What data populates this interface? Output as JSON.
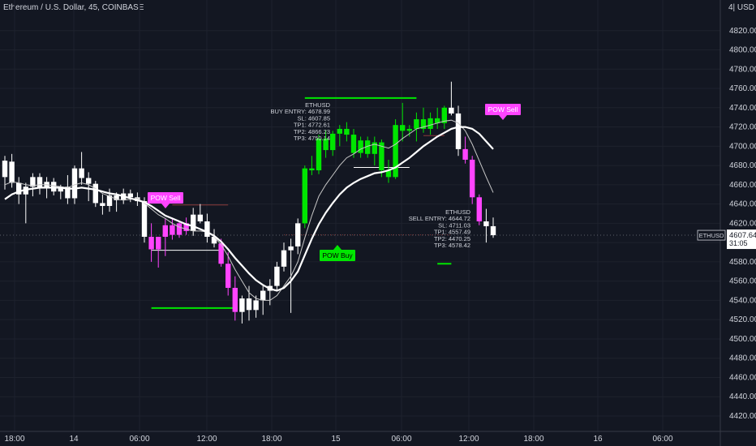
{
  "header": {
    "title": "Ethereum / U.S. Dollar, 45, COINBASE",
    "currency": "4| USD"
  },
  "colors": {
    "background": "#131722",
    "bull": "#00e600",
    "bear": "#ff44ff",
    "neutral": "#ffffff",
    "grid": "#1e222d",
    "price_line": "#8b3a3a"
  },
  "price_axis": {
    "ticks": [
      "4820.00",
      "4800.00",
      "4780.00",
      "4760.00",
      "4740.00",
      "4720.00",
      "4700.00",
      "4680.00",
      "4660.00",
      "4640.00",
      "4620.00",
      "4580.00",
      "4560.00",
      "4540.00",
      "4520.00",
      "4500.00",
      "4480.00",
      "4460.00",
      "4440.00",
      "4420.00"
    ],
    "last_price_symbol": "ETHUSD",
    "last_price": "4607.64",
    "countdown": "31:05"
  },
  "time_axis": {
    "ticks": [
      "18:00",
      "14",
      "06:00",
      "12:00",
      "18:00",
      "15",
      "06:00",
      "12:00",
      "18:00",
      "16",
      "06:00"
    ]
  },
  "annotations": {
    "sell_label_1": "POW Sell",
    "sell_label_2": "POW Sell",
    "buy_label": "POW Buy",
    "buy_box": [
      "ETHUSD",
      "BUY ENTRY: 4678.99",
      "SL: 4607.85",
      "TP1: 4772.61",
      "TP2: 4866.23",
      "TP3: 4750.14"
    ],
    "sell_box": [
      "ETHUSD",
      "SELL ENTRY: 4644.72",
      "SL: 4711.03",
      "TP1: 4557.49",
      "TP2: 4470.25",
      "TP3: 4578.42"
    ]
  },
  "chart_data": {
    "type": "candlestick",
    "title": "Ethereum / U.S. Dollar, 45, COINBASE",
    "ylim": [
      4400,
      4830
    ],
    "last_price": 4607.64,
    "candles": [
      {
        "o": 4668,
        "h": 4690,
        "l": 4655,
        "c": 4685,
        "col": "w"
      },
      {
        "o": 4684,
        "h": 4692,
        "l": 4657,
        "c": 4662,
        "col": "w"
      },
      {
        "o": 4662,
        "h": 4668,
        "l": 4640,
        "c": 4650,
        "col": "w"
      },
      {
        "o": 4650,
        "h": 4662,
        "l": 4620,
        "c": 4658,
        "col": "w"
      },
      {
        "o": 4658,
        "h": 4672,
        "l": 4648,
        "c": 4668,
        "col": "w"
      },
      {
        "o": 4668,
        "h": 4672,
        "l": 4650,
        "c": 4657,
        "col": "w"
      },
      {
        "o": 4657,
        "h": 4668,
        "l": 4646,
        "c": 4663,
        "col": "w"
      },
      {
        "o": 4663,
        "h": 4667,
        "l": 4649,
        "c": 4653,
        "col": "w"
      },
      {
        "o": 4653,
        "h": 4660,
        "l": 4645,
        "c": 4658,
        "col": "w"
      },
      {
        "o": 4658,
        "h": 4670,
        "l": 4640,
        "c": 4646,
        "col": "w"
      },
      {
        "o": 4646,
        "h": 4680,
        "l": 4640,
        "c": 4677,
        "col": "w"
      },
      {
        "o": 4677,
        "h": 4694,
        "l": 4660,
        "c": 4667,
        "col": "w"
      },
      {
        "o": 4667,
        "h": 4673,
        "l": 4643,
        "c": 4661,
        "col": "w"
      },
      {
        "o": 4661,
        "h": 4664,
        "l": 4637,
        "c": 4641,
        "col": "w"
      },
      {
        "o": 4641,
        "h": 4650,
        "l": 4629,
        "c": 4638,
        "col": "w"
      },
      {
        "o": 4638,
        "h": 4656,
        "l": 4632,
        "c": 4649,
        "col": "w"
      },
      {
        "o": 4649,
        "h": 4652,
        "l": 4632,
        "c": 4644,
        "col": "w"
      },
      {
        "o": 4644,
        "h": 4656,
        "l": 4640,
        "c": 4651,
        "col": "w"
      },
      {
        "o": 4651,
        "h": 4655,
        "l": 4642,
        "c": 4647,
        "col": "w"
      },
      {
        "o": 4647,
        "h": 4652,
        "l": 4638,
        "c": 4643,
        "col": "w"
      },
      {
        "o": 4643,
        "h": 4647,
        "l": 4600,
        "c": 4606,
        "col": "w"
      },
      {
        "o": 4606,
        "h": 4620,
        "l": 4580,
        "c": 4593,
        "col": "p"
      },
      {
        "o": 4593,
        "h": 4605,
        "l": 4574,
        "c": 4606,
        "col": "p"
      },
      {
        "o": 4606,
        "h": 4625,
        "l": 4586,
        "c": 4618,
        "col": "p"
      },
      {
        "o": 4618,
        "h": 4625,
        "l": 4603,
        "c": 4608,
        "col": "p"
      },
      {
        "o": 4608,
        "h": 4622,
        "l": 4605,
        "c": 4620,
        "col": "p"
      },
      {
        "o": 4620,
        "h": 4626,
        "l": 4608,
        "c": 4612,
        "col": "p"
      },
      {
        "o": 4612,
        "h": 4636,
        "l": 4607,
        "c": 4629,
        "col": "w"
      },
      {
        "o": 4629,
        "h": 4640,
        "l": 4620,
        "c": 4622,
        "col": "w"
      },
      {
        "o": 4622,
        "h": 4630,
        "l": 4600,
        "c": 4606,
        "col": "w"
      },
      {
        "o": 4606,
        "h": 4614,
        "l": 4595,
        "c": 4599,
        "col": "w"
      },
      {
        "o": 4599,
        "h": 4604,
        "l": 4575,
        "c": 4578,
        "col": "p"
      },
      {
        "o": 4578,
        "h": 4590,
        "l": 4545,
        "c": 4553,
        "col": "p"
      },
      {
        "o": 4553,
        "h": 4565,
        "l": 4519,
        "c": 4528,
        "col": "p"
      },
      {
        "o": 4528,
        "h": 4545,
        "l": 4516,
        "c": 4542,
        "col": "w"
      },
      {
        "o": 4542,
        "h": 4555,
        "l": 4519,
        "c": 4530,
        "col": "w"
      },
      {
        "o": 4530,
        "h": 4545,
        "l": 4522,
        "c": 4540,
        "col": "w"
      },
      {
        "o": 4540,
        "h": 4555,
        "l": 4525,
        "c": 4550,
        "col": "w"
      },
      {
        "o": 4550,
        "h": 4562,
        "l": 4535,
        "c": 4555,
        "col": "w"
      },
      {
        "o": 4555,
        "h": 4580,
        "l": 4550,
        "c": 4575,
        "col": "w"
      },
      {
        "o": 4575,
        "h": 4600,
        "l": 4570,
        "c": 4592,
        "col": "w"
      },
      {
        "o": 4592,
        "h": 4604,
        "l": 4527,
        "c": 4596,
        "col": "w"
      },
      {
        "o": 4596,
        "h": 4625,
        "l": 4588,
        "c": 4620,
        "col": "w"
      },
      {
        "o": 4620,
        "h": 4680,
        "l": 4615,
        "c": 4677,
        "col": "g"
      },
      {
        "o": 4677,
        "h": 4690,
        "l": 4670,
        "c": 4675,
        "col": "g"
      },
      {
        "o": 4675,
        "h": 4712,
        "l": 4671,
        "c": 4708,
        "col": "g"
      },
      {
        "o": 4708,
        "h": 4717,
        "l": 4688,
        "c": 4696,
        "col": "g"
      },
      {
        "o": 4696,
        "h": 4716,
        "l": 4690,
        "c": 4713,
        "col": "g"
      },
      {
        "o": 4713,
        "h": 4722,
        "l": 4700,
        "c": 4718,
        "col": "g"
      },
      {
        "o": 4718,
        "h": 4725,
        "l": 4705,
        "c": 4712,
        "col": "g"
      },
      {
        "o": 4712,
        "h": 4718,
        "l": 4688,
        "c": 4693,
        "col": "g"
      },
      {
        "o": 4693,
        "h": 4710,
        "l": 4688,
        "c": 4706,
        "col": "g"
      },
      {
        "o": 4706,
        "h": 4710,
        "l": 4688,
        "c": 4692,
        "col": "g"
      },
      {
        "o": 4692,
        "h": 4710,
        "l": 4680,
        "c": 4704,
        "col": "g"
      },
      {
        "o": 4704,
        "h": 4707,
        "l": 4668,
        "c": 4675,
        "col": "g"
      },
      {
        "o": 4675,
        "h": 4686,
        "l": 4662,
        "c": 4668,
        "col": "g"
      },
      {
        "o": 4668,
        "h": 4728,
        "l": 4666,
        "c": 4722,
        "col": "g"
      },
      {
        "o": 4722,
        "h": 4745,
        "l": 4705,
        "c": 4716,
        "col": "g"
      },
      {
        "o": 4716,
        "h": 4722,
        "l": 4710,
        "c": 4718,
        "col": "g"
      },
      {
        "o": 4718,
        "h": 4735,
        "l": 4705,
        "c": 4728,
        "col": "g"
      },
      {
        "o": 4728,
        "h": 4740,
        "l": 4714,
        "c": 4718,
        "col": "g"
      },
      {
        "o": 4718,
        "h": 4735,
        "l": 4712,
        "c": 4729,
        "col": "g"
      },
      {
        "o": 4729,
        "h": 4740,
        "l": 4718,
        "c": 4724,
        "col": "g"
      },
      {
        "o": 4724,
        "h": 4742,
        "l": 4718,
        "c": 4740,
        "col": "g"
      },
      {
        "o": 4740,
        "h": 4767,
        "l": 4732,
        "c": 4734,
        "col": "w"
      },
      {
        "o": 4734,
        "h": 4742,
        "l": 4690,
        "c": 4697,
        "col": "w"
      },
      {
        "o": 4697,
        "h": 4710,
        "l": 4682,
        "c": 4686,
        "col": "p"
      },
      {
        "o": 4686,
        "h": 4690,
        "l": 4640,
        "c": 4647,
        "col": "p"
      },
      {
        "o": 4647,
        "h": 4650,
        "l": 4618,
        "c": 4622,
        "col": "p"
      },
      {
        "o": 4622,
        "h": 4635,
        "l": 4600,
        "c": 4617,
        "col": "w"
      },
      {
        "o": 4617,
        "h": 4626,
        "l": 4605,
        "c": 4607.64,
        "col": "w"
      }
    ],
    "lines": {
      "ema_thick": [
        4645,
        4650,
        4653,
        4655,
        4656,
        4657,
        4657,
        4657,
        4657,
        4656,
        4656,
        4657,
        4656,
        4655,
        4653,
        4651,
        4650,
        4648,
        4646,
        4644,
        4642,
        4638,
        4633,
        4628,
        4625,
        4622,
        4619,
        4617,
        4614,
        4611,
        4607,
        4601,
        4593,
        4584,
        4576,
        4568,
        4561,
        4556,
        4552,
        4550,
        4553,
        4560,
        4570,
        4587,
        4604,
        4619,
        4631,
        4641,
        4650,
        4657,
        4662,
        4666,
        4669,
        4672,
        4673,
        4675,
        4678,
        4683,
        4688,
        4694,
        4700,
        4705,
        4710,
        4714,
        4718,
        4720,
        4720,
        4718,
        4713,
        4705,
        4697
      ],
      "sma_thin": [
        4660,
        4663,
        4662,
        4660,
        4659,
        4660,
        4660,
        4659,
        4658,
        4657,
        4660,
        4662,
        4660,
        4656,
        4651,
        4648,
        4645,
        4644,
        4645,
        4646,
        4641,
        4635,
        4629,
        4625,
        4620,
        4616,
        4614,
        4612,
        4612,
        4611,
        4606,
        4598,
        4586,
        4572,
        4560,
        4548,
        4542,
        4540,
        4540,
        4545,
        4555,
        4565,
        4580,
        4605,
        4628,
        4648,
        4660,
        4670,
        4680,
        4688,
        4692,
        4697,
        4700,
        4702,
        4700,
        4698,
        4702,
        4708,
        4713,
        4718,
        4720,
        4722,
        4724,
        4726,
        4727,
        4724,
        4716,
        4702,
        4685,
        4668,
        4652
      ]
    },
    "levels": [
      {
        "y": 4750,
        "x0": 43,
        "x1": 59,
        "color": "g"
      },
      {
        "y": 4532,
        "x0": 21,
        "x1": 33,
        "color": "g"
      },
      {
        "y": 4578,
        "x0": 62,
        "x1": 64,
        "color": "g"
      },
      {
        "y": 4678,
        "x0": 50,
        "x1": 58,
        "color": "w"
      },
      {
        "y": 4592,
        "x0": 21,
        "x1": 31,
        "color": "w"
      },
      {
        "y": 4639,
        "x0": 24,
        "x1": 32,
        "color": "r"
      },
      {
        "y": 4711,
        "x0": 60,
        "x1": 63,
        "color": "r"
      },
      {
        "y": 4608,
        "x0": 40,
        "x1": 64,
        "color": "r"
      }
    ]
  }
}
